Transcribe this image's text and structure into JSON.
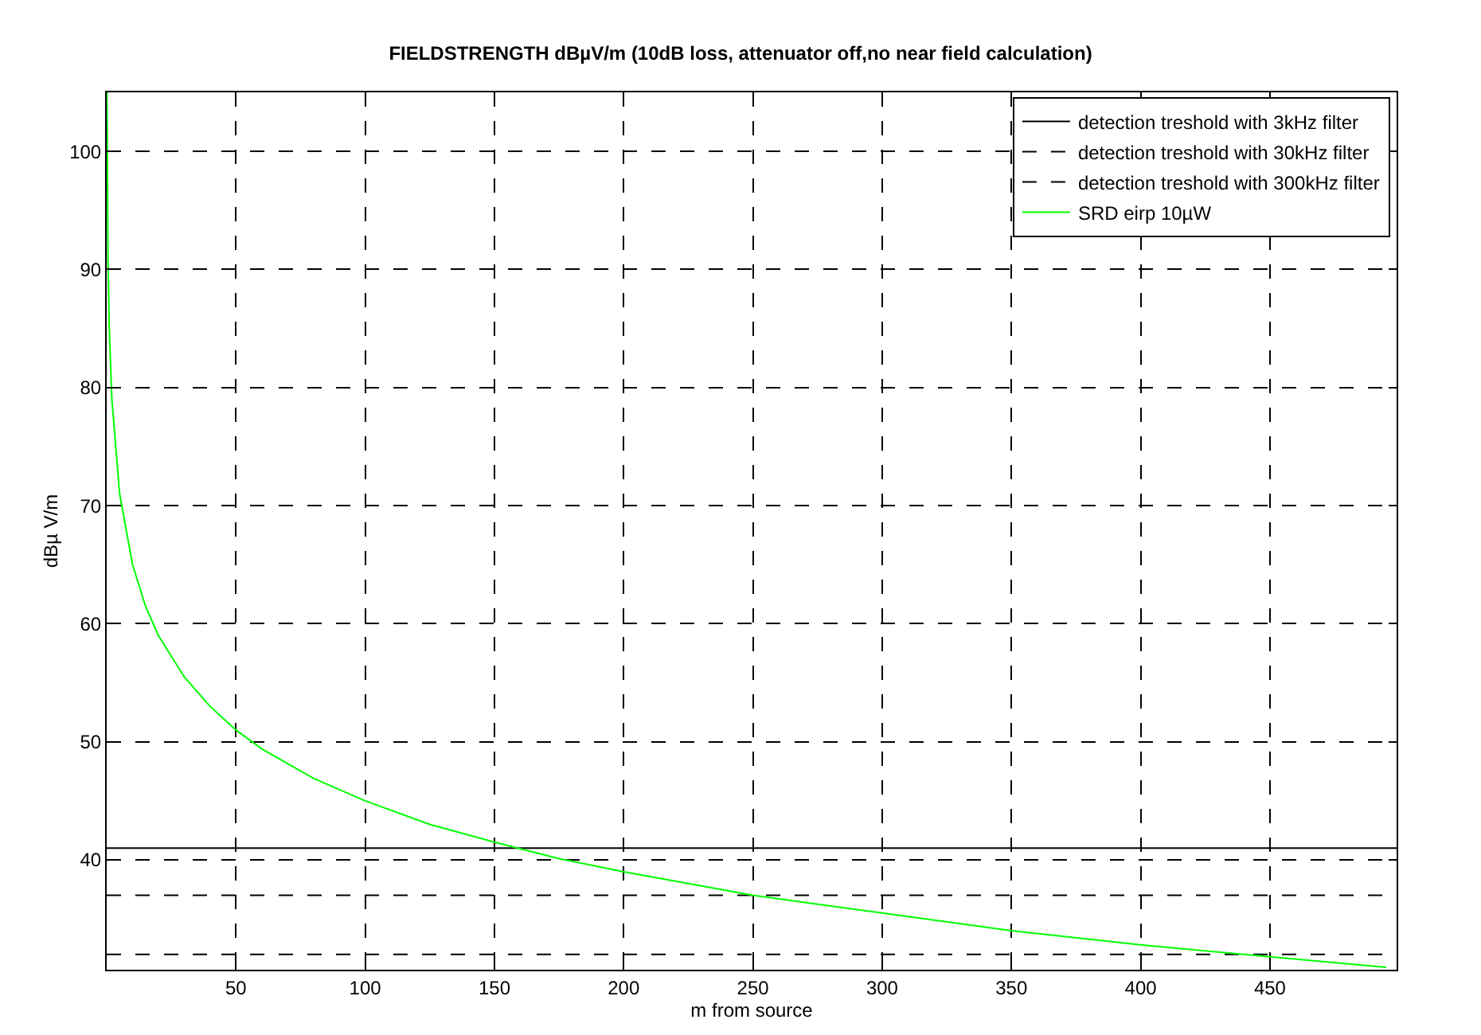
{
  "chart_data": {
    "type": "line",
    "title": "FIELDSTRENGTH dBµV/m (10dB loss, attenuator off,no near field calculation)",
    "xlabel": "m from source",
    "ylabel": "dBµ V/m",
    "xlim": [
      0,
      499
    ],
    "ylim": [
      30.7,
      105
    ],
    "xticks": [
      50,
      100,
      150,
      200,
      250,
      300,
      350,
      400,
      450
    ],
    "yticks": [
      40,
      50,
      60,
      70,
      80,
      90,
      100
    ],
    "grid": true,
    "legend": "top right",
    "series": [
      {
        "name": "detection treshold with 3kHz filter",
        "color": "#000000",
        "line_style": "solid",
        "x": [
          0,
          499
        ],
        "values": [
          41,
          41
        ]
      },
      {
        "name": "detection treshold with 30kHz filter",
        "color": "#000000",
        "line_style": "dashed",
        "x": [
          0,
          499
        ],
        "values": [
          37,
          37
        ]
      },
      {
        "name": "detection treshold with 300kHz filter",
        "color": "#000000",
        "line_style": "dashed",
        "x": [
          0,
          499
        ],
        "values": [
          32,
          32
        ]
      },
      {
        "name": "SRD eirp 10µW",
        "color": "#00ff00",
        "line_style": "solid",
        "x": [
          0.1,
          0.5,
          1,
          2,
          5,
          10,
          15,
          20,
          30,
          40,
          50,
          60,
          80,
          100,
          125,
          150,
          175,
          200,
          250,
          300,
          350,
          400,
          450,
          495
        ],
        "values": [
          105,
          91,
          85,
          79,
          71,
          65,
          61.5,
          59,
          55.5,
          53,
          51,
          49.4,
          46.9,
          45,
          43,
          41.5,
          40.1,
          39,
          37,
          35.5,
          34,
          32.8,
          31.8,
          30.9
        ]
      }
    ]
  }
}
